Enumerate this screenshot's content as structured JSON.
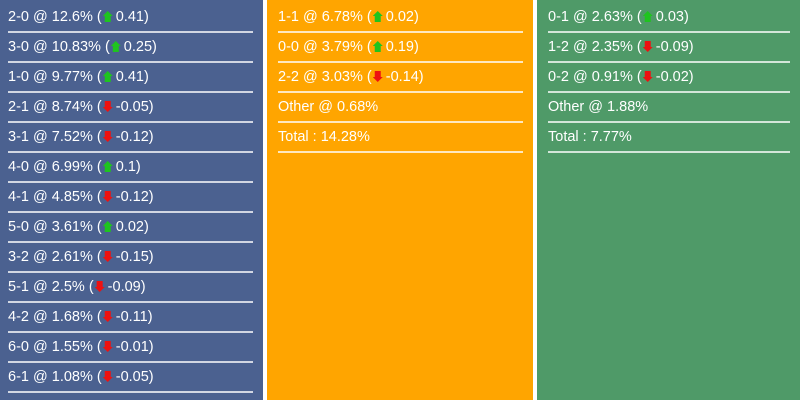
{
  "columns": [
    {
      "color": "#4b6190",
      "rows": [
        {
          "score": "2-0",
          "pct": "12.6%",
          "dir": "up",
          "change": "0.41"
        },
        {
          "score": "3-0",
          "pct": "10.83%",
          "dir": "up",
          "change": "0.25"
        },
        {
          "score": "1-0",
          "pct": "9.77%",
          "dir": "up",
          "change": "0.41"
        },
        {
          "score": "2-1",
          "pct": "8.74%",
          "dir": "down",
          "change": "-0.05"
        },
        {
          "score": "3-1",
          "pct": "7.52%",
          "dir": "down",
          "change": "-0.12"
        },
        {
          "score": "4-0",
          "pct": "6.99%",
          "dir": "up",
          "change": "0.1"
        },
        {
          "score": "4-1",
          "pct": "4.85%",
          "dir": "down",
          "change": "-0.12"
        },
        {
          "score": "5-0",
          "pct": "3.61%",
          "dir": "up",
          "change": "0.02"
        },
        {
          "score": "3-2",
          "pct": "2.61%",
          "dir": "down",
          "change": "-0.15"
        },
        {
          "score": "5-1",
          "pct": "2.5%",
          "dir": "down",
          "change": "-0.09"
        },
        {
          "score": "4-2",
          "pct": "1.68%",
          "dir": "down",
          "change": "-0.11"
        },
        {
          "score": "6-0",
          "pct": "1.55%",
          "dir": "down",
          "change": "-0.01"
        },
        {
          "score": "6-1",
          "pct": "1.08%",
          "dir": "down",
          "change": "-0.05"
        }
      ],
      "extra": []
    },
    {
      "color": "#ffa500",
      "rows": [
        {
          "score": "1-1",
          "pct": "6.78%",
          "dir": "up",
          "change": "0.02"
        },
        {
          "score": "0-0",
          "pct": "3.79%",
          "dir": "up",
          "change": "0.19"
        },
        {
          "score": "2-2",
          "pct": "3.03%",
          "dir": "down",
          "change": "-0.14"
        }
      ],
      "extra": [
        "Other @ 0.68%",
        "Total : 14.28%"
      ]
    },
    {
      "color": "#4f9a68",
      "rows": [
        {
          "score": "0-1",
          "pct": "2.63%",
          "dir": "up",
          "change": "0.03"
        },
        {
          "score": "1-2",
          "pct": "2.35%",
          "dir": "down",
          "change": "-0.09"
        },
        {
          "score": "0-2",
          "pct": "0.91%",
          "dir": "down",
          "change": "-0.02"
        }
      ],
      "extra": [
        "Other @ 1.88%",
        "Total : 7.77%"
      ]
    }
  ]
}
